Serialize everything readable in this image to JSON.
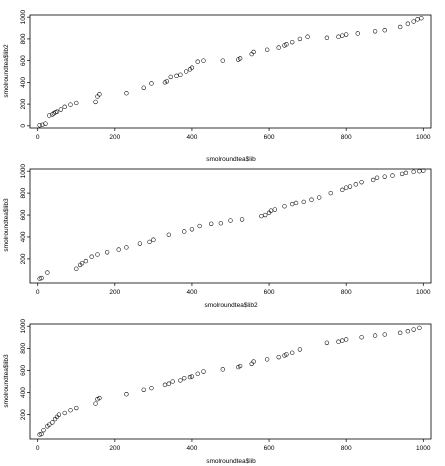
{
  "chart_data": [
    {
      "type": "scatter",
      "xlabel": "smolroundtea$lib",
      "ylabel": "smolroundtea$lib2",
      "xlim": [
        -20,
        1020
      ],
      "ylim": [
        -20,
        1020
      ],
      "xticks": [
        0,
        200,
        400,
        600,
        800,
        1000
      ],
      "yticks": [
        0,
        200,
        400,
        600,
        800,
        1000
      ],
      "points": [
        [
          5,
          5
        ],
        [
          12,
          10
        ],
        [
          20,
          20
        ],
        [
          30,
          95
        ],
        [
          38,
          105
        ],
        [
          42,
          115
        ],
        [
          46,
          125
        ],
        [
          50,
          130
        ],
        [
          60,
          150
        ],
        [
          70,
          175
        ],
        [
          85,
          195
        ],
        [
          100,
          210
        ],
        [
          150,
          220
        ],
        [
          155,
          270
        ],
        [
          160,
          290
        ],
        [
          230,
          300
        ],
        [
          275,
          350
        ],
        [
          295,
          390
        ],
        [
          330,
          400
        ],
        [
          335,
          410
        ],
        [
          345,
          450
        ],
        [
          360,
          460
        ],
        [
          370,
          470
        ],
        [
          385,
          500
        ],
        [
          395,
          520
        ],
        [
          400,
          535
        ],
        [
          415,
          590
        ],
        [
          430,
          600
        ],
        [
          480,
          600
        ],
        [
          520,
          610
        ],
        [
          525,
          620
        ],
        [
          555,
          660
        ],
        [
          560,
          680
        ],
        [
          595,
          700
        ],
        [
          625,
          720
        ],
        [
          640,
          740
        ],
        [
          645,
          750
        ],
        [
          660,
          770
        ],
        [
          680,
          800
        ],
        [
          700,
          820
        ],
        [
          750,
          810
        ],
        [
          780,
          820
        ],
        [
          790,
          830
        ],
        [
          800,
          840
        ],
        [
          830,
          850
        ],
        [
          875,
          870
        ],
        [
          900,
          880
        ],
        [
          940,
          910
        ],
        [
          960,
          940
        ],
        [
          975,
          960
        ],
        [
          985,
          980
        ],
        [
          995,
          990
        ]
      ]
    },
    {
      "type": "scatter",
      "xlabel": "smolroundtea$lib2",
      "ylabel": "smolroundtea$lib3",
      "xlim": [
        -20,
        1020
      ],
      "ylim": [
        -20,
        1020
      ],
      "xticks": [
        0,
        200,
        400,
        600,
        800,
        1000
      ],
      "yticks": [
        200,
        400,
        600,
        800,
        1000
      ],
      "points": [
        [
          5,
          20
        ],
        [
          10,
          25
        ],
        [
          25,
          75
        ],
        [
          100,
          110
        ],
        [
          110,
          145
        ],
        [
          115,
          160
        ],
        [
          125,
          180
        ],
        [
          140,
          220
        ],
        [
          155,
          240
        ],
        [
          180,
          260
        ],
        [
          210,
          285
        ],
        [
          230,
          305
        ],
        [
          265,
          340
        ],
        [
          290,
          355
        ],
        [
          300,
          375
        ],
        [
          340,
          420
        ],
        [
          380,
          450
        ],
        [
          400,
          470
        ],
        [
          420,
          500
        ],
        [
          450,
          520
        ],
        [
          475,
          525
        ],
        [
          500,
          550
        ],
        [
          530,
          560
        ],
        [
          580,
          590
        ],
        [
          590,
          600
        ],
        [
          600,
          620
        ],
        [
          605,
          640
        ],
        [
          615,
          650
        ],
        [
          640,
          680
        ],
        [
          660,
          700
        ],
        [
          670,
          710
        ],
        [
          690,
          720
        ],
        [
          710,
          740
        ],
        [
          730,
          760
        ],
        [
          760,
          800
        ],
        [
          790,
          830
        ],
        [
          800,
          850
        ],
        [
          810,
          860
        ],
        [
          825,
          880
        ],
        [
          840,
          900
        ],
        [
          870,
          920
        ],
        [
          880,
          940
        ],
        [
          900,
          950
        ],
        [
          920,
          960
        ],
        [
          945,
          975
        ],
        [
          955,
          985
        ],
        [
          975,
          995
        ],
        [
          990,
          1000
        ],
        [
          1000,
          1005
        ]
      ]
    },
    {
      "type": "scatter",
      "xlabel": "smolroundtea$lib",
      "ylabel": "smolroundtea$lib3",
      "xlim": [
        -20,
        1020
      ],
      "ylim": [
        -20,
        1020
      ],
      "xticks": [
        0,
        200,
        400,
        600,
        800,
        1000
      ],
      "yticks": [
        200,
        400,
        600,
        800,
        1000
      ],
      "points": [
        [
          5,
          20
        ],
        [
          10,
          25
        ],
        [
          15,
          60
        ],
        [
          25,
          95
        ],
        [
          30,
          110
        ],
        [
          38,
          130
        ],
        [
          45,
          160
        ],
        [
          50,
          180
        ],
        [
          55,
          200
        ],
        [
          70,
          215
        ],
        [
          85,
          240
        ],
        [
          100,
          260
        ],
        [
          150,
          300
        ],
        [
          155,
          340
        ],
        [
          160,
          350
        ],
        [
          230,
          385
        ],
        [
          275,
          425
        ],
        [
          295,
          440
        ],
        [
          330,
          470
        ],
        [
          340,
          480
        ],
        [
          350,
          500
        ],
        [
          370,
          510
        ],
        [
          380,
          530
        ],
        [
          395,
          540
        ],
        [
          400,
          545
        ],
        [
          415,
          570
        ],
        [
          430,
          590
        ],
        [
          480,
          610
        ],
        [
          520,
          630
        ],
        [
          525,
          640
        ],
        [
          555,
          660
        ],
        [
          560,
          680
        ],
        [
          595,
          700
        ],
        [
          625,
          720
        ],
        [
          640,
          735
        ],
        [
          645,
          745
        ],
        [
          660,
          760
        ],
        [
          680,
          790
        ],
        [
          750,
          850
        ],
        [
          780,
          860
        ],
        [
          790,
          870
        ],
        [
          800,
          880
        ],
        [
          840,
          900
        ],
        [
          875,
          915
        ],
        [
          900,
          925
        ],
        [
          940,
          940
        ],
        [
          960,
          955
        ],
        [
          975,
          970
        ],
        [
          990,
          985
        ]
      ]
    }
  ]
}
